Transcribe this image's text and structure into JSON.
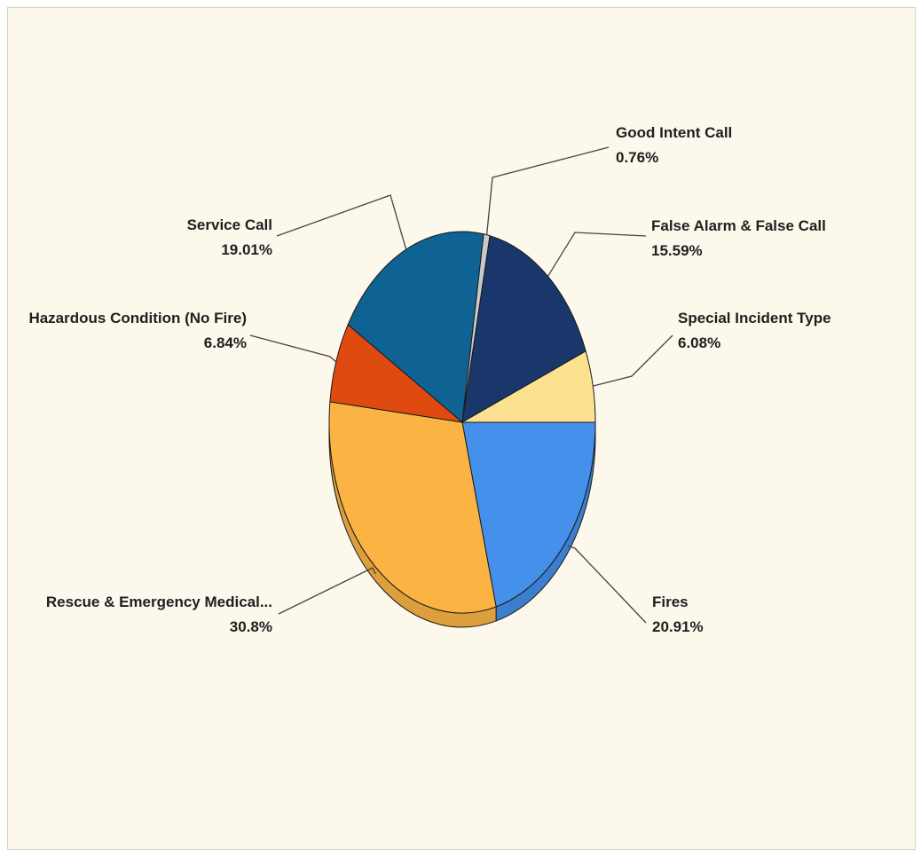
{
  "chart_data": {
    "type": "pie",
    "title": "",
    "slices": [
      {
        "label": "Fires",
        "value_label": "20.91%",
        "value": 20.91,
        "color": "#4490ea"
      },
      {
        "label": "Rescue & Emergency Medical...",
        "value_label": "30.8%",
        "value": 30.8,
        "color": "#fbb444"
      },
      {
        "label": "Hazardous Condition (No Fire)",
        "value_label": "6.84%",
        "value": 6.84,
        "color": "#df4a10"
      },
      {
        "label": "Service Call",
        "value_label": "19.01%",
        "value": 19.01,
        "color": "#0f6294"
      },
      {
        "label": "Good Intent Call",
        "value_label": "0.76%",
        "value": 0.76,
        "color": "#c9c9c9"
      },
      {
        "label": "False Alarm & False Call",
        "value_label": "15.59%",
        "value": 15.59,
        "color": "#19376a"
      },
      {
        "label": "Special Incident Type",
        "value_label": "6.08%",
        "value": 6.08,
        "color": "#fce18f"
      }
    ],
    "start_angle_deg": 0,
    "direction": "clockwise",
    "style": "3d-tilted",
    "labels": "outside-with-leader-lines"
  }
}
